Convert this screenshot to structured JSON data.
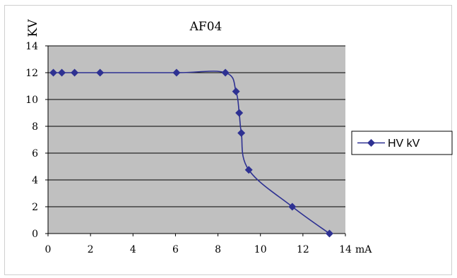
{
  "chart_data": {
    "type": "line",
    "title": "AF04",
    "xlabel": "mA",
    "ylabel": "KV",
    "xlim": [
      0,
      14
    ],
    "ylim": [
      0,
      14
    ],
    "xticks": [
      0,
      2,
      4,
      6,
      8,
      10,
      12,
      14
    ],
    "yticks": [
      0,
      2,
      4,
      6,
      8,
      10,
      12,
      14
    ],
    "grid": "horizontal",
    "legend_position": "right",
    "colors": {
      "series": "#2e3192",
      "plot_bg": "#c0c0c0",
      "grid": "#000000"
    },
    "series": [
      {
        "name": "HV kV",
        "x": [
          0.25,
          0.65,
          1.25,
          2.45,
          6.05,
          8.35,
          8.85,
          9.0,
          9.1,
          9.45,
          11.5,
          13.25
        ],
        "y": [
          12.0,
          12.0,
          12.0,
          12.0,
          12.0,
          12.0,
          10.6,
          9.0,
          7.5,
          4.75,
          2.0,
          0.0
        ]
      }
    ]
  }
}
